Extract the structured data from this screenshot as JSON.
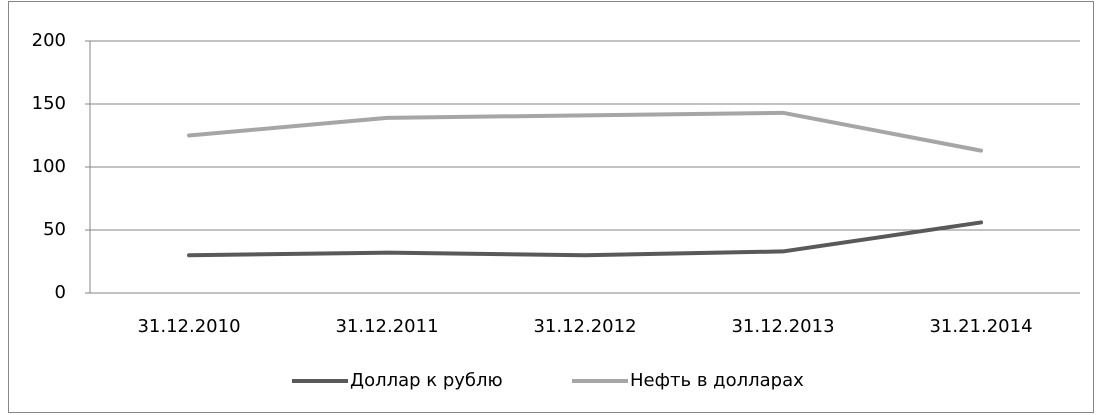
{
  "chart_data": {
    "type": "line",
    "categories": [
      "31.12.2010",
      "31.12.2011",
      "31.12.2012",
      "31.12.2013",
      "31.21.2014"
    ],
    "series": [
      {
        "name": "Доллар к рублю",
        "color": "#595959",
        "values": [
          30,
          32,
          30,
          33,
          56
        ]
      },
      {
        "name": "Нефть в долларах",
        "color": "#a6a6a6",
        "values": [
          125,
          139,
          141,
          143,
          113
        ]
      }
    ],
    "ylim": [
      0,
      200
    ],
    "yticks": [
      0,
      50,
      100,
      150,
      200
    ],
    "grid": true,
    "legend": "bottom"
  }
}
